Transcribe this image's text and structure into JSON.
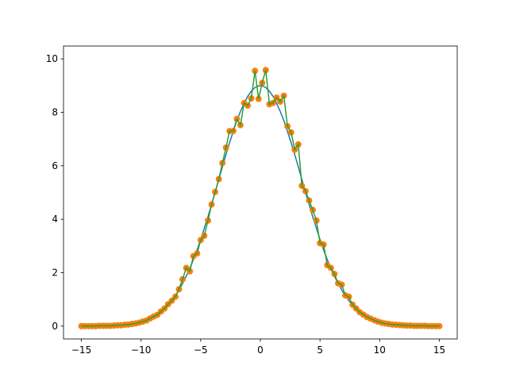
{
  "chart_data": {
    "type": "line",
    "x": [
      -15.0,
      -14.7,
      -14.39,
      -14.09,
      -13.79,
      -13.48,
      -13.18,
      -12.88,
      -12.58,
      -12.27,
      -11.97,
      -11.67,
      -11.36,
      -11.06,
      -10.76,
      -10.45,
      -10.15,
      -9.85,
      -9.55,
      -9.24,
      -8.94,
      -8.64,
      -8.33,
      -8.03,
      -7.73,
      -7.42,
      -7.12,
      -6.82,
      -6.52,
      -6.21,
      -5.91,
      -5.61,
      -5.3,
      -5.0,
      -4.7,
      -4.39,
      -4.09,
      -3.79,
      -3.48,
      -3.18,
      -2.88,
      -2.58,
      -2.27,
      -1.97,
      -1.67,
      -1.36,
      -1.06,
      -0.76,
      -0.45,
      -0.15,
      0.15,
      0.45,
      0.76,
      1.06,
      1.36,
      1.67,
      1.97,
      2.27,
      2.58,
      2.88,
      3.18,
      3.48,
      3.79,
      4.09,
      4.39,
      4.7,
      5.0,
      5.3,
      5.61,
      5.91,
      6.21,
      6.52,
      6.82,
      7.12,
      7.42,
      7.73,
      8.03,
      8.33,
      8.64,
      8.94,
      9.24,
      9.55,
      9.85,
      10.15,
      10.45,
      10.76,
      11.06,
      11.36,
      11.67,
      11.97,
      12.27,
      12.58,
      12.88,
      13.18,
      13.48,
      13.79,
      14.09,
      14.39,
      14.7,
      15.0
    ],
    "series": [
      {
        "color": "#1f77b4",
        "style": "line",
        "values": [
          0.0,
          0.0,
          0.0,
          0.0,
          0.0,
          0.01,
          0.01,
          0.01,
          0.01,
          0.02,
          0.03,
          0.03,
          0.05,
          0.06,
          0.08,
          0.1,
          0.13,
          0.17,
          0.22,
          0.28,
          0.35,
          0.43,
          0.53,
          0.65,
          0.78,
          0.95,
          1.14,
          1.35,
          1.59,
          1.87,
          2.16,
          2.49,
          2.85,
          3.24,
          3.66,
          4.09,
          4.55,
          5.0,
          5.49,
          5.96,
          6.42,
          6.86,
          7.29,
          7.69,
          8.03,
          8.34,
          8.6,
          8.79,
          8.93,
          8.99,
          8.99,
          8.93,
          8.79,
          8.6,
          8.34,
          8.03,
          7.69,
          7.29,
          6.86,
          6.42,
          5.96,
          5.49,
          5.0,
          4.55,
          4.09,
          3.66,
          3.24,
          2.85,
          2.49,
          2.16,
          1.87,
          1.59,
          1.35,
          1.14,
          0.95,
          0.78,
          0.65,
          0.53,
          0.43,
          0.35,
          0.28,
          0.22,
          0.17,
          0.13,
          0.1,
          0.08,
          0.06,
          0.05,
          0.03,
          0.03,
          0.02,
          0.01,
          0.01,
          0.01,
          0.01,
          0.0,
          0.0,
          0.0,
          0.0,
          0.0
        ]
      },
      {
        "color": "#ff7f0e",
        "style": "markers",
        "values": [
          0.0,
          0.0,
          0.0,
          0.0,
          0.0,
          0.01,
          0.01,
          0.01,
          0.01,
          0.02,
          0.03,
          0.03,
          0.05,
          0.06,
          0.08,
          0.1,
          0.13,
          0.17,
          0.21,
          0.29,
          0.36,
          0.42,
          0.55,
          0.66,
          0.82,
          0.95,
          1.1,
          1.38,
          1.75,
          2.18,
          2.05,
          2.62,
          2.72,
          3.22,
          3.38,
          3.95,
          4.55,
          5.02,
          5.5,
          6.1,
          6.68,
          7.3,
          7.3,
          7.75,
          7.52,
          8.35,
          8.25,
          8.52,
          9.55,
          8.5,
          9.1,
          9.58,
          8.3,
          8.35,
          8.55,
          8.4,
          8.62,
          7.48,
          7.25,
          6.6,
          6.8,
          5.25,
          5.05,
          4.7,
          4.35,
          3.95,
          3.1,
          3.05,
          2.28,
          2.18,
          1.95,
          1.6,
          1.55,
          1.15,
          1.1,
          0.8,
          0.66,
          0.52,
          0.43,
          0.34,
          0.28,
          0.22,
          0.17,
          0.13,
          0.1,
          0.08,
          0.06,
          0.05,
          0.04,
          0.03,
          0.02,
          0.02,
          0.01,
          0.01,
          0.01,
          0.01,
          0.0,
          0.0,
          0.0,
          0.0
        ]
      },
      {
        "color": "#2ca02c",
        "style": "line",
        "values": [
          0.0,
          0.0,
          0.0,
          0.0,
          0.0,
          0.01,
          0.01,
          0.01,
          0.01,
          0.02,
          0.03,
          0.03,
          0.05,
          0.06,
          0.08,
          0.1,
          0.13,
          0.17,
          0.21,
          0.29,
          0.36,
          0.42,
          0.55,
          0.66,
          0.82,
          0.95,
          1.1,
          1.38,
          1.75,
          2.18,
          2.05,
          2.62,
          2.72,
          3.22,
          3.38,
          3.95,
          4.55,
          5.02,
          5.5,
          6.1,
          6.68,
          7.3,
          7.3,
          7.75,
          7.52,
          8.35,
          8.25,
          8.52,
          9.55,
          8.5,
          9.1,
          9.58,
          8.3,
          8.35,
          8.55,
          8.4,
          8.62,
          7.48,
          7.25,
          6.6,
          6.8,
          5.25,
          5.05,
          4.7,
          4.35,
          3.95,
          3.1,
          3.05,
          2.28,
          2.18,
          1.95,
          1.6,
          1.55,
          1.15,
          1.1,
          0.8,
          0.66,
          0.52,
          0.43,
          0.34,
          0.28,
          0.22,
          0.17,
          0.13,
          0.1,
          0.08,
          0.06,
          0.05,
          0.04,
          0.03,
          0.02,
          0.02,
          0.01,
          0.01,
          0.01,
          0.01,
          0.0,
          0.0,
          0.0,
          0.0
        ]
      }
    ],
    "xlim": [
      -16.5,
      16.5
    ],
    "xticks": [
      {
        "value": -15,
        "label": "−15"
      },
      {
        "value": -10,
        "label": "−10"
      },
      {
        "value": -5,
        "label": "−5"
      },
      0,
      5,
      10,
      15
    ],
    "ylim": [
      -0.48,
      10.48
    ],
    "yticks": [
      0,
      2,
      4,
      6,
      8,
      10
    ],
    "grid": false
  }
}
